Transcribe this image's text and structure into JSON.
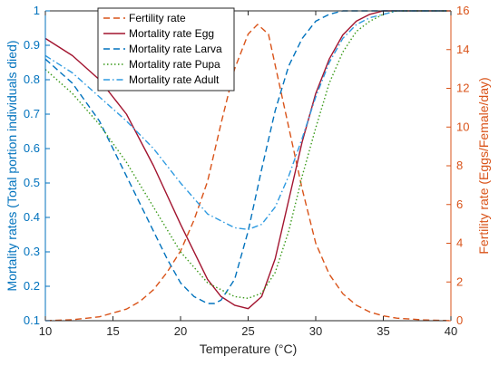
{
  "chart_data": {
    "type": "line",
    "xlabel": "Temperature (°C)",
    "ylabel_left": "Mortality rates (Total portion individuals died)",
    "ylabel_right": "Fertility rate (Eggs/Female/day)",
    "xlim": [
      10,
      40
    ],
    "ylim_left": [
      0.1,
      1
    ],
    "ylim_right": [
      0,
      16
    ],
    "x_ticks": [
      10,
      15,
      20,
      25,
      30,
      35,
      40
    ],
    "y_left_ticks": [
      0.1,
      0.2,
      0.3,
      0.4,
      0.5,
      0.6,
      0.7,
      0.8,
      0.9,
      1
    ],
    "y_left_tick_labels": [
      "0.1",
      "0.2",
      "0.3",
      "0.4",
      "0.5",
      "0.6",
      "0.7",
      "0.8",
      "0.9",
      "1"
    ],
    "y_right_ticks": [
      0,
      2,
      4,
      6,
      8,
      10,
      12,
      14,
      16
    ],
    "legend_position": "top-left-center",
    "grid": false,
    "left_axis_color": "#0072BD",
    "right_axis_color": "#D95319",
    "series": [
      {
        "name": "Fertility rate",
        "axis": "right",
        "color": "#D95319",
        "style": "dashed",
        "x": [
          10,
          12,
          14,
          16,
          17,
          18,
          19,
          20,
          21,
          22,
          23,
          24,
          25,
          25.7,
          26.5,
          27,
          28,
          29,
          30,
          31,
          32,
          33,
          34,
          35,
          36,
          38,
          40
        ],
        "y": [
          0,
          0.05,
          0.2,
          0.6,
          1.0,
          1.6,
          2.5,
          3.6,
          5.2,
          7.2,
          10.2,
          13.0,
          14.8,
          15.3,
          14.8,
          13.2,
          10.0,
          6.8,
          4.0,
          2.4,
          1.4,
          0.8,
          0.45,
          0.25,
          0.13,
          0.04,
          0
        ]
      },
      {
        "name": "Mortality rate Egg",
        "axis": "left",
        "color": "#A2142F",
        "style": "solid",
        "x": [
          10,
          12,
          14,
          16,
          18,
          20,
          22,
          23,
          24,
          25,
          26,
          27,
          28,
          29,
          30,
          31,
          32,
          33,
          34,
          35,
          36,
          38,
          40
        ],
        "y": [
          0.92,
          0.87,
          0.8,
          0.7,
          0.55,
          0.38,
          0.22,
          0.17,
          0.145,
          0.135,
          0.17,
          0.28,
          0.45,
          0.62,
          0.76,
          0.86,
          0.93,
          0.97,
          0.99,
          1.0,
          1.0,
          1.0,
          1.0
        ]
      },
      {
        "name": "Mortality rate Larva",
        "axis": "left",
        "color": "#0072BD",
        "style": "dashed",
        "x": [
          10,
          12,
          14,
          16,
          18,
          19,
          20,
          21,
          22,
          22.5,
          23,
          24,
          25,
          26,
          27,
          28,
          29,
          30,
          31,
          32,
          33,
          34,
          35,
          40
        ],
        "y": [
          0.86,
          0.79,
          0.68,
          0.52,
          0.36,
          0.28,
          0.21,
          0.17,
          0.15,
          0.15,
          0.16,
          0.22,
          0.36,
          0.54,
          0.71,
          0.84,
          0.92,
          0.97,
          0.99,
          1.0,
          1.0,
          1.0,
          1.0,
          1.0
        ]
      },
      {
        "name": "Mortality rate Pupa",
        "axis": "left",
        "color": "#3A9A1A",
        "style": "dotted",
        "x": [
          10,
          12,
          14,
          16,
          18,
          20,
          22,
          24,
          25,
          26,
          27,
          28,
          29,
          30,
          31,
          32,
          33,
          34,
          35,
          36,
          38,
          40
        ],
        "y": [
          0.83,
          0.76,
          0.67,
          0.56,
          0.43,
          0.3,
          0.21,
          0.17,
          0.165,
          0.18,
          0.24,
          0.36,
          0.52,
          0.66,
          0.79,
          0.88,
          0.94,
          0.97,
          0.99,
          1.0,
          1.0,
          1.0
        ]
      },
      {
        "name": "Mortality rate Adult",
        "axis": "left",
        "color": "#2E9AE0",
        "style": "dashdot",
        "x": [
          10,
          12,
          14,
          16,
          18,
          20,
          22,
          24,
          25,
          26,
          27,
          28,
          29,
          30,
          31,
          32,
          33,
          34,
          35,
          36,
          38,
          40
        ],
        "y": [
          0.87,
          0.82,
          0.75,
          0.68,
          0.6,
          0.5,
          0.41,
          0.37,
          0.365,
          0.38,
          0.43,
          0.52,
          0.63,
          0.75,
          0.85,
          0.92,
          0.96,
          0.98,
          0.99,
          1.0,
          1.0,
          1.0
        ]
      }
    ]
  }
}
